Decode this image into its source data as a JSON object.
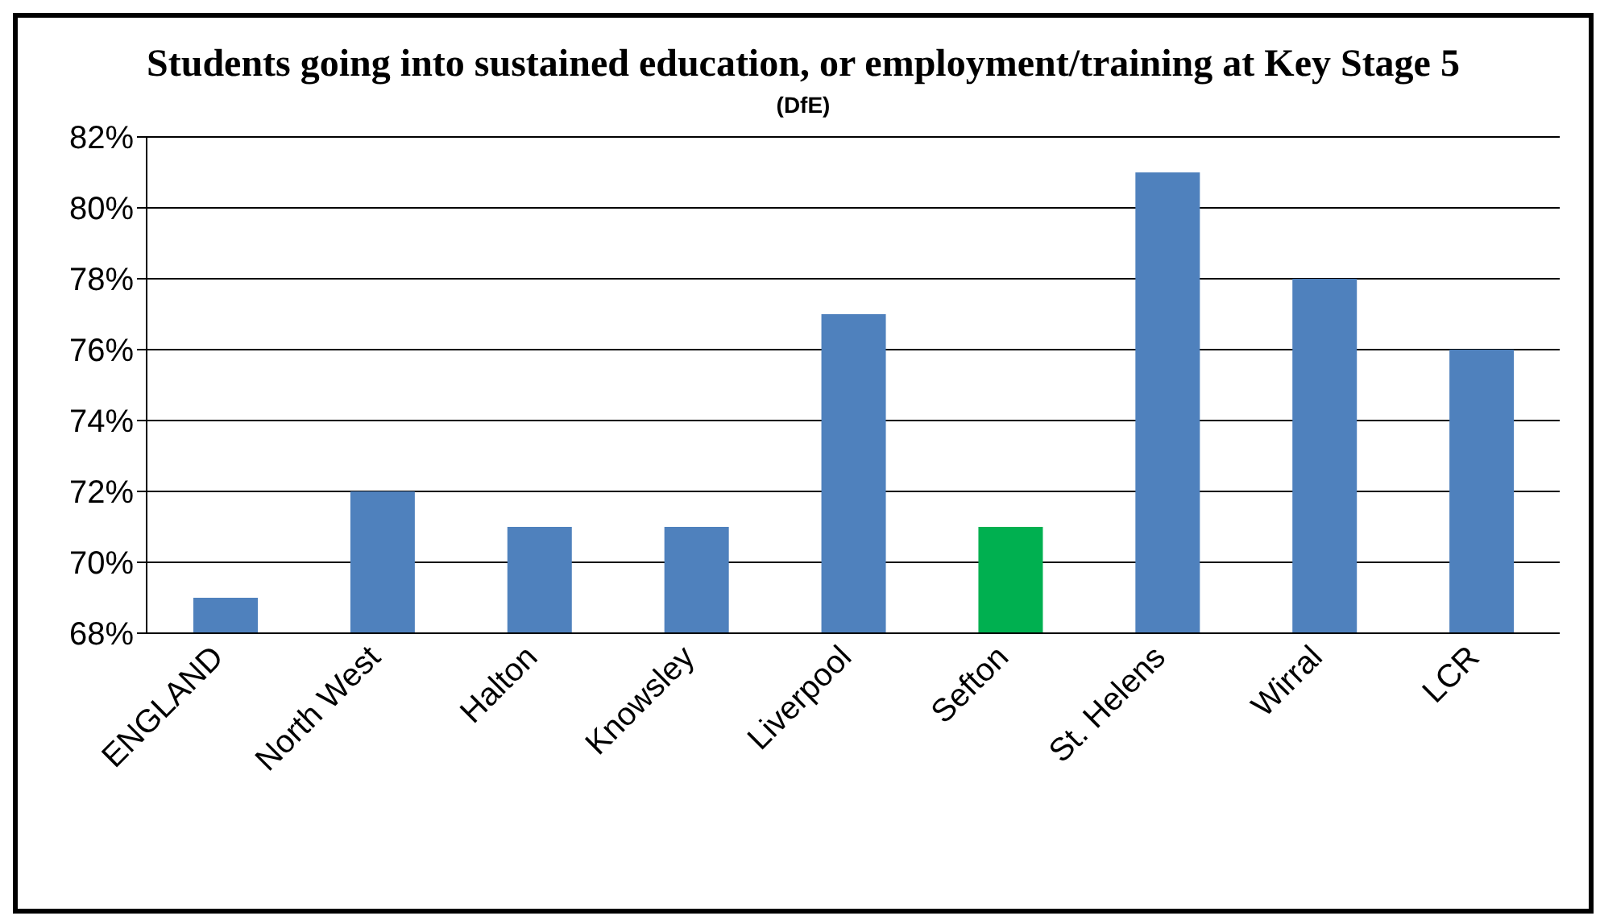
{
  "chart_data": {
    "type": "bar",
    "title": "Students going into sustained education, or employment/training at Key Stage 5",
    "subtitle": "(DfE)",
    "categories": [
      "ENGLAND",
      "North West",
      "Halton",
      "Knowsley",
      "Liverpool",
      "Sefton",
      "St. Helens",
      "Wirral",
      "LCR"
    ],
    "values": [
      69,
      72,
      71,
      71,
      77,
      71,
      81,
      78,
      76
    ],
    "colors": [
      "#4f81bd",
      "#4f81bd",
      "#4f81bd",
      "#4f81bd",
      "#4f81bd",
      "#00b050",
      "#4f81bd",
      "#4f81bd",
      "#4f81bd"
    ],
    "ylim": [
      68,
      82
    ],
    "yticks": [
      {
        "value": 68,
        "label": "68%"
      },
      {
        "value": 70,
        "label": "70%"
      },
      {
        "value": 72,
        "label": "72%"
      },
      {
        "value": 74,
        "label": "74%"
      },
      {
        "value": 76,
        "label": "76%"
      },
      {
        "value": 78,
        "label": "78%"
      },
      {
        "value": 80,
        "label": "80%"
      },
      {
        "value": 82,
        "label": "82%"
      }
    ],
    "grid": "y"
  }
}
